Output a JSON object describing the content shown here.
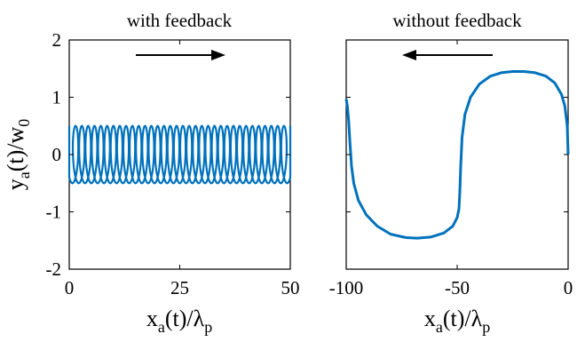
{
  "chart_data": [
    {
      "type": "line",
      "title": "with feedback",
      "xlabel": {
        "base": "x",
        "sub": "a",
        "rest": "(t)/λ",
        "sub2": "p"
      },
      "ylabel": {
        "base": "y",
        "sub": "a",
        "rest": "(t)/w",
        "sub2": "0"
      },
      "xlim": [
        0,
        50
      ],
      "ylim": [
        -2,
        2
      ],
      "xticks": [
        0,
        25,
        50
      ],
      "xtick_labels": [
        "0",
        "25",
        "50"
      ],
      "yticks": [
        -2,
        -1,
        0,
        1,
        2
      ],
      "ytick_labels": [
        "-2",
        "-1",
        "0",
        "1",
        "2"
      ],
      "grid": false,
      "arrow": "right",
      "series": [
        {
          "color": "#0072BD",
          "shape": "trochoid",
          "note_visual": "dense looping oscillation",
          "x_range": [
            0,
            50
          ],
          "y_amplitude": 0.5,
          "loops": 35
        }
      ]
    },
    {
      "type": "line",
      "title": "without feedback",
      "xlabel": {
        "base": "x",
        "sub": "a",
        "rest": "(t)/λ",
        "sub2": "p"
      },
      "xlim": [
        -100,
        0
      ],
      "ylim": [
        -2,
        2
      ],
      "xticks": [
        -100,
        -50,
        0
      ],
      "xtick_labels": [
        "-100",
        "-50",
        "0"
      ],
      "grid": false,
      "arrow": "left",
      "series": [
        {
          "color": "#0072BD",
          "x": [
            0,
            -0.4,
            -1.5,
            -3,
            -6,
            -10,
            -15,
            -20,
            -25,
            -30,
            -35,
            -40,
            -44,
            -46.5,
            -47.8,
            -48.4,
            -48.8,
            -49.2,
            -50,
            -52,
            -56,
            -62,
            -68,
            -73,
            -80,
            -86,
            -91,
            -94.5,
            -96.6,
            -97.6,
            -98.3,
            -98.9,
            -99.5,
            -100
          ],
          "y": [
            0,
            0.5,
            0.85,
            1.05,
            1.25,
            1.37,
            1.43,
            1.45,
            1.45,
            1.43,
            1.37,
            1.23,
            1.0,
            0.7,
            0.3,
            -0.2,
            -0.65,
            -0.95,
            -1.1,
            -1.25,
            -1.37,
            -1.44,
            -1.46,
            -1.45,
            -1.39,
            -1.25,
            -1.05,
            -0.8,
            -0.5,
            -0.2,
            0.2,
            0.6,
            0.85,
            0.97
          ]
        }
      ]
    }
  ]
}
